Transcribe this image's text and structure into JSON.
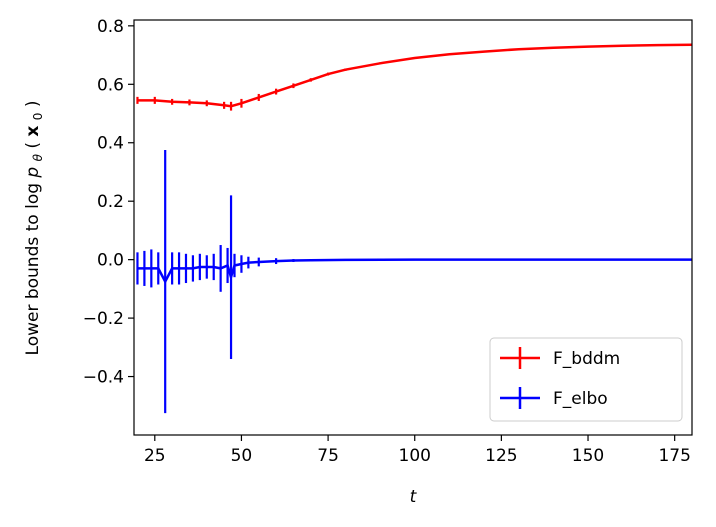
{
  "chart_data": {
    "type": "line",
    "xlabel": "t",
    "ylabel": "Lower bounds to log p_θ(x_0)",
    "ylabel_parts": {
      "prefix": "Lower bounds to log",
      "p": "p",
      "theta": "θ",
      "lparen": "(",
      "x": "x",
      "zero": "0",
      "rparen": ")"
    },
    "xlim": [
      19,
      180
    ],
    "ylim": [
      -0.6,
      0.82
    ],
    "xticks": [
      25,
      50,
      75,
      100,
      125,
      150,
      175
    ],
    "xtick_labels": [
      "25",
      "50",
      "75",
      "100",
      "125",
      "150",
      "175"
    ],
    "yticks": [
      -0.4,
      -0.2,
      0.0,
      0.2,
      0.4,
      0.6,
      0.8
    ],
    "ytick_labels": [
      "−0.4",
      "−0.2",
      "0.0",
      "0.2",
      "0.4",
      "0.6",
      "0.8"
    ],
    "grid": false,
    "legend_position": "lower-right",
    "series": [
      {
        "name": "F_bddm",
        "color": "#ff0000",
        "x": [
          20,
          25,
          30,
          35,
          40,
          45,
          47,
          50,
          55,
          60,
          65,
          70,
          75,
          80,
          90,
          100,
          110,
          120,
          130,
          140,
          150,
          160,
          170,
          180
        ],
        "y": [
          0.545,
          0.545,
          0.54,
          0.538,
          0.535,
          0.528,
          0.525,
          0.535,
          0.555,
          0.575,
          0.595,
          0.615,
          0.635,
          0.65,
          0.672,
          0.69,
          0.703,
          0.712,
          0.72,
          0.725,
          0.729,
          0.732,
          0.734,
          0.735
        ],
        "err": [
          0.012,
          0.012,
          0.01,
          0.01,
          0.01,
          0.012,
          0.015,
          0.015,
          0.012,
          0.01,
          0.008,
          0.006,
          0.005,
          0.004,
          0.003,
          0.003,
          0.002,
          0.002,
          0.002,
          0.002,
          0.002,
          0.002,
          0.002,
          0.002
        ]
      },
      {
        "name": "F_elbo",
        "color": "#0000ff",
        "x": [
          20,
          22,
          24,
          26,
          28,
          30,
          32,
          34,
          36,
          38,
          40,
          42,
          44,
          46,
          47,
          48,
          50,
          52,
          55,
          60,
          65,
          70,
          80,
          100,
          120,
          140,
          160,
          180
        ],
        "y": [
          -0.03,
          -0.03,
          -0.03,
          -0.03,
          -0.075,
          -0.03,
          -0.03,
          -0.03,
          -0.03,
          -0.025,
          -0.025,
          -0.025,
          -0.03,
          -0.02,
          -0.06,
          -0.02,
          -0.015,
          -0.01,
          -0.008,
          -0.005,
          -0.003,
          -0.002,
          -0.001,
          0.0,
          0.0,
          0.0,
          0.0,
          0.0
        ],
        "err": [
          0.055,
          0.06,
          0.065,
          0.055,
          0.45,
          0.055,
          0.055,
          0.05,
          0.045,
          0.045,
          0.04,
          0.045,
          0.08,
          0.06,
          0.28,
          0.04,
          0.03,
          0.02,
          0.015,
          0.01,
          0.005,
          0.003,
          0.002,
          0.001,
          0.001,
          0.001,
          0.001,
          0.001
        ]
      }
    ]
  }
}
